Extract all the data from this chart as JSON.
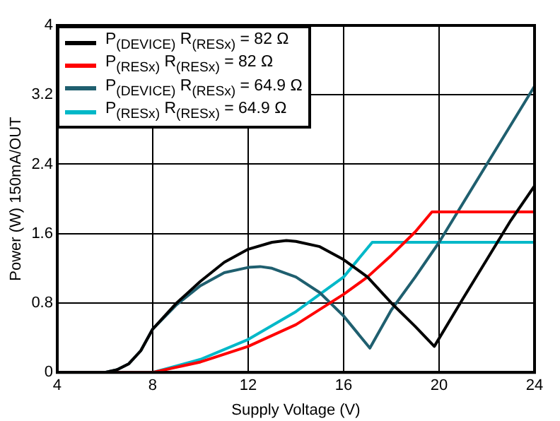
{
  "chart_data": {
    "type": "line",
    "xlabel": "Supply Voltage (V)",
    "ylabel": "Power (W) 150mA/OUT",
    "xlim": [
      4,
      24
    ],
    "xticks": [
      4,
      8,
      12,
      16,
      20,
      24
    ],
    "ylim": [
      0,
      4
    ],
    "yticks": [
      0,
      0.8,
      1.6,
      2.4,
      3.2,
      4
    ],
    "grid": true,
    "legend": "top left",
    "marker": "none",
    "line_style": "solid",
    "series": [
      {
        "name": "P$_{(DEVICE)}$ R$_{(RESx)}$ = 82 Ω",
        "color": "#000000",
        "x": [
          4,
          6,
          6.5,
          7,
          7.5,
          8,
          9,
          10,
          11,
          12,
          13,
          13.6,
          14,
          15,
          16,
          17,
          18,
          19,
          19.8,
          21,
          22,
          23,
          24
        ],
        "values": [
          0,
          0,
          0.03,
          0.1,
          0.25,
          0.5,
          0.8,
          1.05,
          1.27,
          1.42,
          1.5,
          1.52,
          1.51,
          1.45,
          1.3,
          1.1,
          0.8,
          0.53,
          0.3,
          0.85,
          1.3,
          1.75,
          2.15
        ]
      },
      {
        "name": "P$_{(RESx)}$ R$_{(RESx)}$ = 82 Ω",
        "color": "#ff0000",
        "x": [
          4,
          8,
          10,
          12,
          14,
          16,
          17,
          18,
          19,
          19.7,
          24
        ],
        "values": [
          0,
          0,
          0.12,
          0.3,
          0.55,
          0.9,
          1.1,
          1.35,
          1.62,
          1.85,
          1.85
        ]
      },
      {
        "name": "P$_{(DEVICE)}$ R$_{(RESx)}$ = 64.9 Ω",
        "color": "#1f5f6f",
        "x": [
          4,
          6,
          6.5,
          7,
          7.5,
          8,
          9,
          10,
          11,
          12,
          12.5,
          13,
          14,
          15,
          16,
          17.1,
          18,
          19,
          20,
          22,
          24
        ],
        "values": [
          0,
          0,
          0.03,
          0.1,
          0.25,
          0.5,
          0.78,
          1.0,
          1.15,
          1.21,
          1.22,
          1.2,
          1.1,
          0.92,
          0.65,
          0.28,
          0.72,
          1.1,
          1.5,
          2.4,
          3.3
        ]
      },
      {
        "name": "P$_{(RESx)}$ R$_{(RESx)}$ = 64.9 Ω",
        "color": "#00b8c8",
        "x": [
          4,
          8,
          10,
          12,
          14,
          16,
          17.2,
          24
        ],
        "values": [
          0,
          0,
          0.15,
          0.38,
          0.7,
          1.1,
          1.5,
          1.5
        ]
      }
    ]
  }
}
